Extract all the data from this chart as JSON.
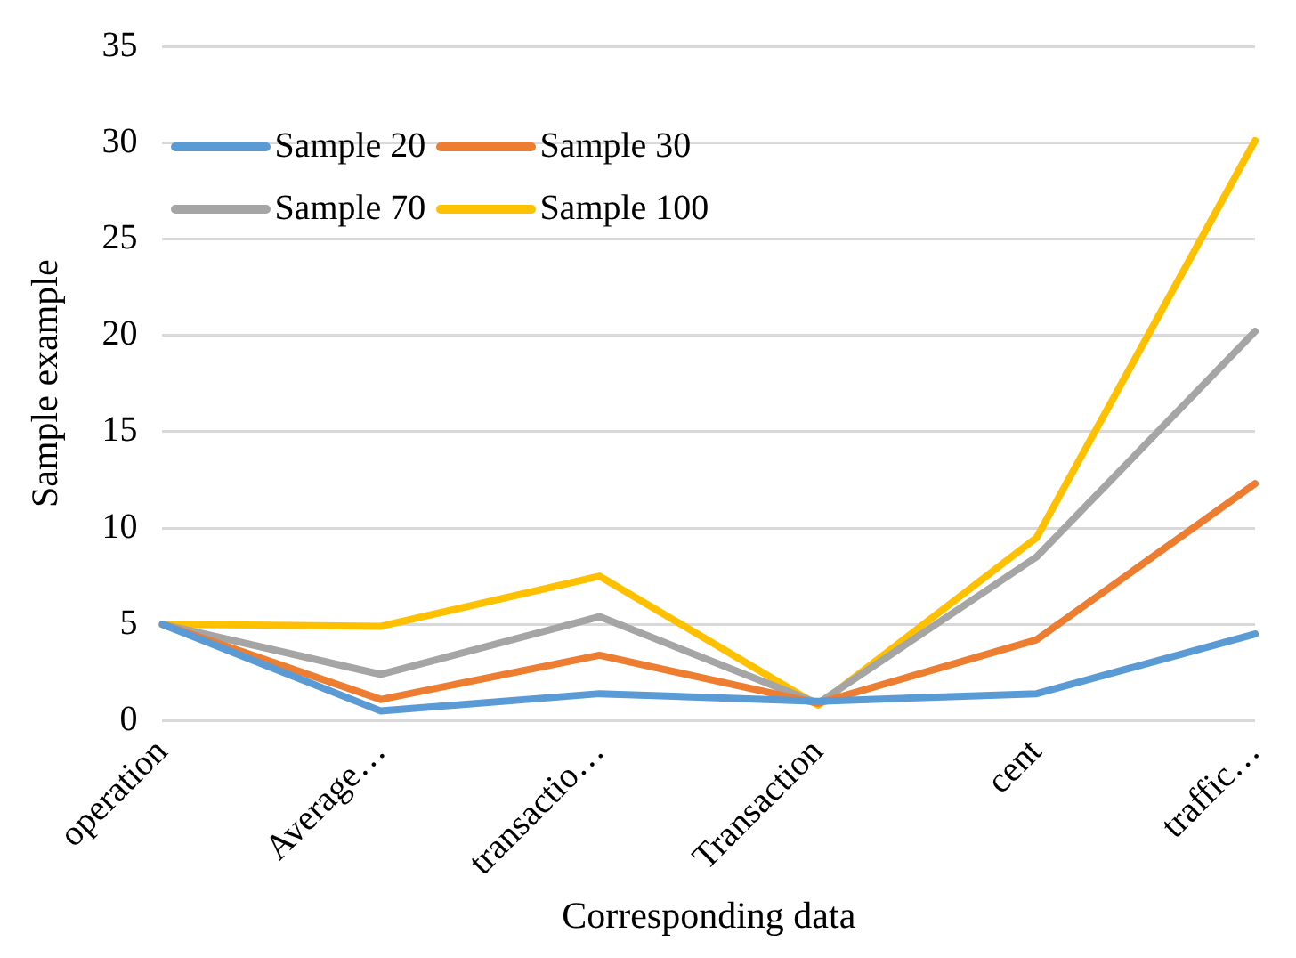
{
  "chart_data": {
    "type": "line",
    "xlabel": "Corresponding data",
    "ylabel": "Sample example",
    "categories": [
      "operation",
      "Average…",
      "transactio…",
      "Transaction",
      "cent",
      "traffic…"
    ],
    "ylim": [
      0,
      35
    ],
    "yticks": [
      0,
      5,
      10,
      15,
      20,
      25,
      30,
      35
    ],
    "grid": "y",
    "legend": "top left",
    "marker": "none",
    "line_style": "solid",
    "series": [
      {
        "name": "Sample 20",
        "color": "#5b9bd5",
        "values": [
          5,
          0.5,
          1.4,
          1.0,
          1.4,
          4.5
        ]
      },
      {
        "name": "Sample 30",
        "color": "#ed7d31",
        "values": [
          5,
          1.1,
          3.4,
          0.9,
          4.2,
          12.3
        ]
      },
      {
        "name": "Sample 70",
        "color": "#a5a5a5",
        "values": [
          5,
          2.4,
          5.4,
          0.9,
          8.5,
          20.2
        ]
      },
      {
        "name": "Sample 100",
        "color": "#ffc000",
        "values": [
          5,
          4.9,
          7.5,
          0.8,
          9.5,
          30.1
        ]
      }
    ]
  }
}
